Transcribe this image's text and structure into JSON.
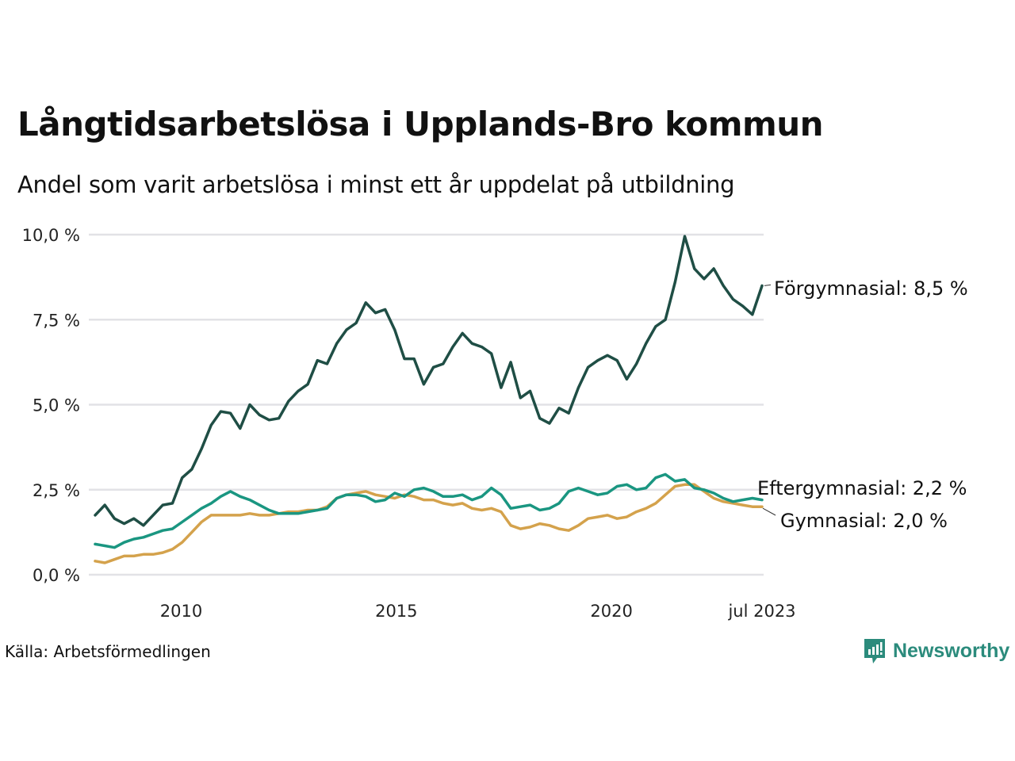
{
  "header": {
    "title": "Långtidsarbetslösa i Upplands-Bro kommun",
    "subtitle": "Andel som varit arbetslösa i minst ett år uppdelat på utbildning"
  },
  "footer": {
    "source": "Källa: Arbetsförmedlingen",
    "brand": "Newsworthy",
    "brand_icon": "bar-chart-speech-bubble-icon",
    "brand_color": "#2b8b7c"
  },
  "chart_data": {
    "type": "line",
    "title": "Långtidsarbetslösa i Upplands-Bro kommun",
    "subtitle": "Andel som varit arbetslösa i minst ett år uppdelat på utbildning",
    "xlabel": "",
    "ylabel": "",
    "x_start": "2008-01",
    "x_end": "2023-07",
    "x_step": "quarter",
    "x_ticks": [
      {
        "label": "2010",
        "month_index": 24
      },
      {
        "label": "2015",
        "month_index": 84
      },
      {
        "label": "2020",
        "month_index": 144
      },
      {
        "label": "jul 2023",
        "month_index": 186
      }
    ],
    "y_ticks": [
      "0,0 %",
      "2,5 %",
      "5,0 %",
      "7,5 %",
      "10,0 %"
    ],
    "y_tick_values": [
      0,
      2.5,
      5,
      7.5,
      10
    ],
    "ylim": [
      0,
      10
    ],
    "grid": true,
    "legend": "direct-labels-right",
    "series": [
      {
        "name": "Förgymnasial",
        "end_label": "Förgymnasial: 8,5 %",
        "color": "#1f4e45",
        "values": [
          1.75,
          2.05,
          1.65,
          1.5,
          1.65,
          1.45,
          1.75,
          2.05,
          2.1,
          2.85,
          3.1,
          3.7,
          4.4,
          4.8,
          4.75,
          4.3,
          5.0,
          4.7,
          4.55,
          4.6,
          5.1,
          5.4,
          5.6,
          6.3,
          6.2,
          6.8,
          7.2,
          7.4,
          8.0,
          7.7,
          7.8,
          7.2,
          6.35,
          6.35,
          5.6,
          6.1,
          6.2,
          6.7,
          7.1,
          6.8,
          6.7,
          6.5,
          5.5,
          6.25,
          5.2,
          5.4,
          4.6,
          4.45,
          4.9,
          4.75,
          5.5,
          6.1,
          6.3,
          6.45,
          6.3,
          5.75,
          6.2,
          6.8,
          7.3,
          7.5,
          8.6,
          9.95,
          9.0,
          8.7,
          9.0,
          8.5,
          8.1,
          7.9,
          7.65,
          8.5
        ],
        "last_value": 8.5
      },
      {
        "name": "Eftergymnasial",
        "end_label": "Eftergymnasial: 2,2 %",
        "color": "#1a9681",
        "values": [
          0.9,
          0.85,
          0.8,
          0.95,
          1.05,
          1.1,
          1.2,
          1.3,
          1.35,
          1.55,
          1.75,
          1.95,
          2.1,
          2.3,
          2.45,
          2.3,
          2.2,
          2.05,
          1.9,
          1.8,
          1.8,
          1.8,
          1.85,
          1.9,
          1.95,
          2.25,
          2.35,
          2.35,
          2.3,
          2.15,
          2.2,
          2.4,
          2.3,
          2.5,
          2.55,
          2.45,
          2.3,
          2.3,
          2.35,
          2.2,
          2.3,
          2.55,
          2.35,
          1.95,
          2.0,
          2.05,
          1.9,
          1.95,
          2.1,
          2.45,
          2.55,
          2.45,
          2.35,
          2.4,
          2.6,
          2.65,
          2.5,
          2.55,
          2.85,
          2.95,
          2.75,
          2.8,
          2.55,
          2.5,
          2.4,
          2.25,
          2.15,
          2.2,
          2.25,
          2.2
        ],
        "last_value": 2.2
      },
      {
        "name": "Gymnasial",
        "end_label": "Gymnasial: 2,0 %",
        "color": "#d4a24c",
        "values": [
          0.4,
          0.35,
          0.45,
          0.55,
          0.55,
          0.6,
          0.6,
          0.65,
          0.75,
          0.95,
          1.25,
          1.55,
          1.75,
          1.75,
          1.75,
          1.75,
          1.8,
          1.75,
          1.75,
          1.8,
          1.85,
          1.85,
          1.9,
          1.9,
          2.0,
          2.25,
          2.35,
          2.4,
          2.45,
          2.35,
          2.3,
          2.25,
          2.35,
          2.3,
          2.2,
          2.2,
          2.1,
          2.05,
          2.1,
          1.95,
          1.9,
          1.95,
          1.85,
          1.45,
          1.35,
          1.4,
          1.5,
          1.45,
          1.35,
          1.3,
          1.45,
          1.65,
          1.7,
          1.75,
          1.65,
          1.7,
          1.85,
          1.95,
          2.1,
          2.35,
          2.6,
          2.65,
          2.65,
          2.45,
          2.25,
          2.15,
          2.1,
          2.05,
          2.0,
          2.0
        ],
        "last_value": 2.0
      }
    ]
  }
}
